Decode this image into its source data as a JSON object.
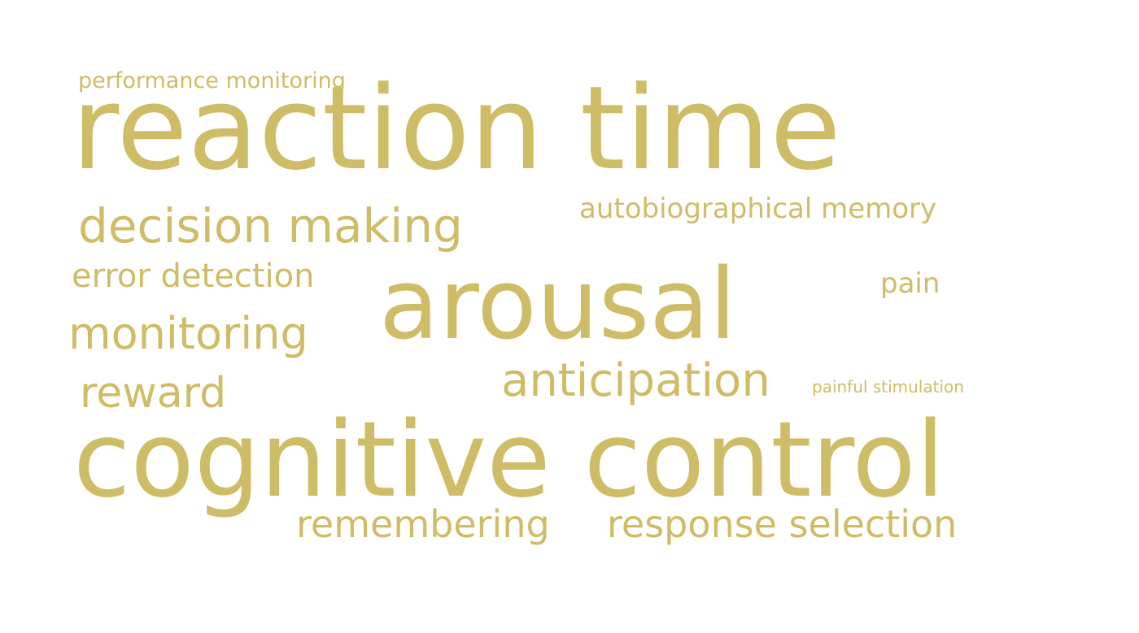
{
  "accent_color": "#cfbc67",
  "words": {
    "performance_monitoring": "performance monitoring",
    "reaction_time": "reaction time",
    "decision_making": "decision making",
    "autobiographical_memory": "autobiographical memory",
    "error_detection": "error detection",
    "arousal": "arousal",
    "pain": "pain",
    "monitoring": "monitoring",
    "anticipation": "anticipation",
    "painful_stimulation": "painful stimulation",
    "reward": "reward",
    "cognitive_control": "cognitive control",
    "remembering": "remembering",
    "response_selection": "response selection"
  }
}
